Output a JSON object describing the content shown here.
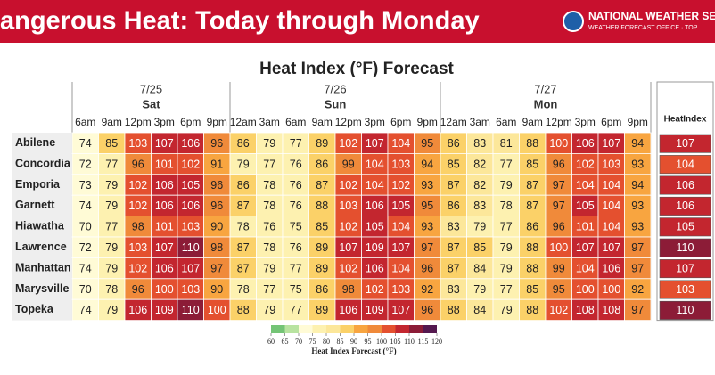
{
  "banner": {
    "title": "angerous Heat: Today through Monday",
    "agency": "NATIONAL WEATHER SE",
    "office": "WEATHER FORECAST OFFICE · TOP"
  },
  "table": {
    "title": "Heat Index (°F) Forecast",
    "days": [
      {
        "date": "7/25",
        "day": "Sat",
        "times": [
          "6am",
          "9am",
          "12pm",
          "3pm",
          "6pm",
          "9pm"
        ]
      },
      {
        "date": "7/26",
        "day": "Sun",
        "times": [
          "12am",
          "3am",
          "6am",
          "9am",
          "12pm",
          "3pm",
          "6pm",
          "9pm"
        ]
      },
      {
        "date": "7/27",
        "day": "Mon",
        "times": [
          "12am",
          "3am",
          "6am",
          "9am",
          "12pm",
          "3pm",
          "6pm",
          "9pm"
        ]
      }
    ],
    "max_header": "HeatIndex",
    "rows": [
      {
        "city": "Abilene",
        "values": [
          74,
          85,
          103,
          107,
          106,
          96,
          86,
          79,
          77,
          89,
          102,
          107,
          104,
          95,
          86,
          83,
          81,
          88,
          100,
          106,
          107,
          94
        ],
        "max": 107
      },
      {
        "city": "Concordia",
        "values": [
          72,
          77,
          96,
          101,
          102,
          91,
          79,
          77,
          76,
          86,
          99,
          104,
          103,
          94,
          85,
          82,
          77,
          85,
          96,
          102,
          103,
          93
        ],
        "max": 104
      },
      {
        "city": "Emporia",
        "values": [
          73,
          79,
          102,
          106,
          105,
          96,
          86,
          78,
          76,
          87,
          102,
          104,
          102,
          93,
          87,
          82,
          79,
          87,
          97,
          104,
          104,
          94
        ],
        "max": 106
      },
      {
        "city": "Garnett",
        "values": [
          74,
          79,
          102,
          106,
          106,
          96,
          87,
          78,
          76,
          88,
          103,
          106,
          105,
          95,
          86,
          83,
          78,
          87,
          97,
          105,
          104,
          93
        ],
        "max": 106
      },
      {
        "city": "Hiawatha",
        "values": [
          70,
          77,
          98,
          101,
          103,
          90,
          78,
          76,
          75,
          85,
          102,
          105,
          104,
          93,
          83,
          79,
          77,
          86,
          96,
          101,
          104,
          93
        ],
        "max": 105
      },
      {
        "city": "Lawrence",
        "values": [
          72,
          79,
          103,
          107,
          110,
          98,
          87,
          78,
          76,
          89,
          107,
          109,
          107,
          97,
          87,
          85,
          79,
          88,
          100,
          107,
          107,
          97
        ],
        "max": 110
      },
      {
        "city": "Manhattan",
        "values": [
          74,
          79,
          102,
          106,
          107,
          97,
          87,
          79,
          77,
          89,
          102,
          106,
          104,
          96,
          87,
          84,
          79,
          88,
          99,
          104,
          106,
          97
        ],
        "max": 107
      },
      {
        "city": "Marysville",
        "values": [
          70,
          78,
          96,
          100,
          103,
          90,
          78,
          77,
          75,
          86,
          98,
          102,
          103,
          92,
          83,
          79,
          77,
          85,
          95,
          100,
          100,
          92
        ],
        "max": 103
      },
      {
        "city": "Topeka",
        "values": [
          74,
          79,
          106,
          109,
          110,
          100,
          88,
          79,
          77,
          89,
          106,
          109,
          107,
          96,
          88,
          84,
          79,
          88,
          102,
          108,
          108,
          97
        ],
        "max": 110
      }
    ]
  },
  "legend": {
    "ticks": [
      60,
      65,
      70,
      75,
      80,
      85,
      90,
      95,
      100,
      105,
      110,
      115,
      120
    ],
    "colors": [
      "#74c476",
      "#b8e3a0",
      "#fffbd6",
      "#fdf1b0",
      "#fce79a",
      "#fbd168",
      "#f8a540",
      "#f08a3a",
      "#e4502f",
      "#c3262f",
      "#8c1c37",
      "#54184f"
    ],
    "label": "Heat Index Forecast (°F)"
  }
}
